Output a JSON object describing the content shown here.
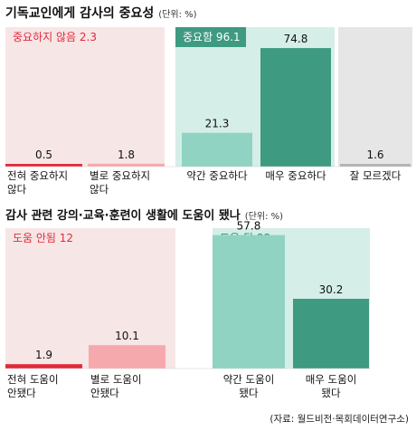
{
  "chart_data": [
    {
      "type": "bar",
      "title": "기독교인에게 감사의 중요성",
      "unit": "(단위: %)",
      "categories": [
        "전혀 중요하지 않다",
        "별로 중요하지 않다",
        "약간 중요하다",
        "매우 중요하다",
        "잘 모르겠다"
      ],
      "category_lines": [
        [
          "전혀 중요하지",
          "않다"
        ],
        [
          "별로 중요하지",
          "않다"
        ],
        [
          "약간 중요하다"
        ],
        [
          "매우 중요하다"
        ],
        [
          "잘 모르겠다"
        ]
      ],
      "values": [
        0.5,
        1.8,
        21.3,
        74.8,
        1.6
      ],
      "value_labels": [
        "0.5",
        "1.8",
        "21.3",
        "74.8",
        "1.6"
      ],
      "groups": [
        {
          "label": "중요하지 않음 2.3",
          "members": [
            0,
            1
          ],
          "color": "#e2293b"
        },
        {
          "label": "중요함 96.1",
          "members": [
            2,
            3
          ],
          "color": "#ffffff"
        },
        {
          "label": "",
          "members": [
            4
          ],
          "color": "#555555"
        }
      ],
      "ylim": [
        0,
        80
      ]
    },
    {
      "type": "bar",
      "title": "감사 관련 강의·교육·훈련이 생활에 도움이 됐나",
      "unit": "(단위: %)",
      "categories": [
        "전혀 도움이 안됐다",
        "별로 도움이 안됐다",
        "약간 도움이 됐다",
        "매우 도움이 됐다"
      ],
      "category_lines": [
        [
          "전혀 도움이",
          "안됐다"
        ],
        [
          "별로 도움이",
          "안됐다"
        ],
        [
          "약간 도움이",
          "됐다"
        ],
        [
          "매우 도움이",
          "됐다"
        ]
      ],
      "values": [
        1.9,
        10.1,
        57.8,
        30.2
      ],
      "value_labels": [
        "1.9",
        "10.1",
        "57.8",
        "30.2"
      ],
      "groups": [
        {
          "label": "도움 안됨 12",
          "members": [
            0,
            1
          ],
          "color": "#e2293b"
        },
        {
          "label": "도움 됨 88",
          "members": [
            2,
            3
          ],
          "color": "#2e8a72"
        }
      ],
      "ylim": [
        0,
        65
      ]
    }
  ],
  "source": "(자료: 월드비전·목회데이터연구소)",
  "colors": {
    "neg_panel": "#f7e6e6",
    "pos_panel": "#d5eee8",
    "dk_panel": "#e6e6e6",
    "neg_text": "#e2293b",
    "pos_text_dark": "#2e8a72",
    "red_bar": "#e2293b",
    "pink_bar": "#f6a9ad",
    "teal_light": "#90d3c2",
    "teal_dark": "#3e9a81",
    "gray_bar": "#b3b3b3"
  }
}
